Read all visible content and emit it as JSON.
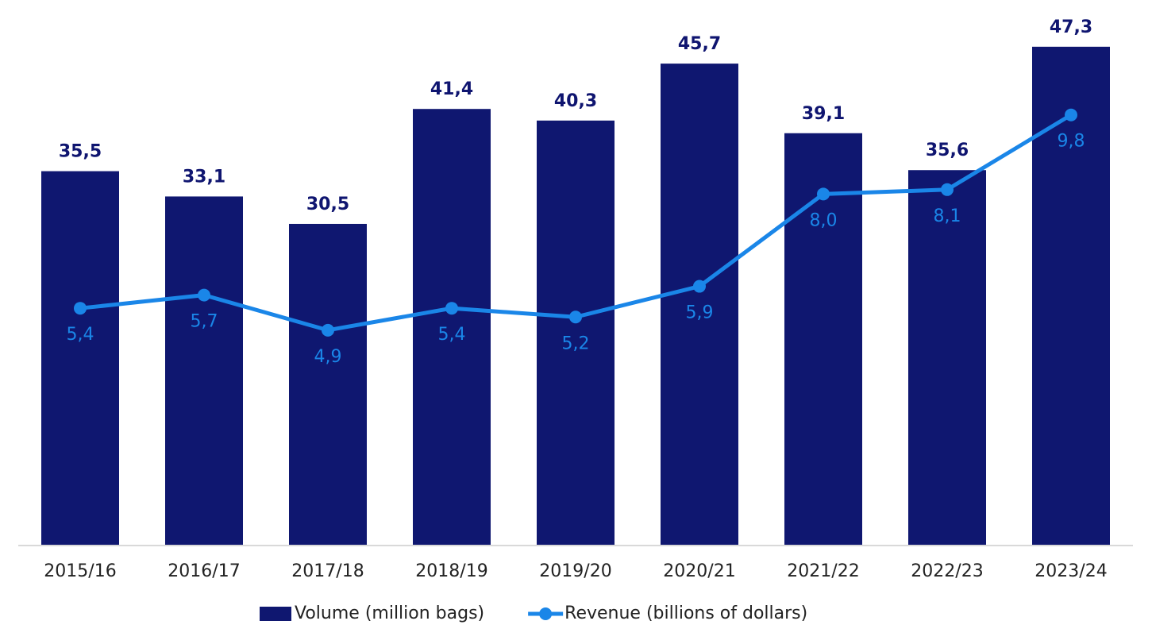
{
  "chart_data": {
    "type": "bar",
    "categories": [
      "2015/16",
      "2016/17",
      "2017/18",
      "2018/19",
      "2019/20",
      "2020/21",
      "2021/22",
      "2022/23",
      "2023/24"
    ],
    "series": [
      {
        "name": "Volume (million bags)",
        "color": "#0f1770",
        "values": [
          35.5,
          33.1,
          30.5,
          41.4,
          40.3,
          45.7,
          39.1,
          35.6,
          47.3
        ],
        "value_labels": [
          "35,5",
          "33,1",
          "30,5",
          "41,4",
          "40,3",
          "45,7",
          "39,1",
          "35,6",
          "47,3"
        ]
      },
      {
        "name": "Revenue (billions of dollars)",
        "color": "#1a86e8",
        "type": "line",
        "axis": "y2",
        "values": [
          5.4,
          5.7,
          4.9,
          5.4,
          5.2,
          5.9,
          8.0,
          8.1,
          9.8
        ],
        "value_labels": [
          "5,4",
          "5,7",
          "4,9",
          "5,4",
          "5,2",
          "5,9",
          "8,0",
          "8,1",
          "9,8"
        ]
      }
    ],
    "ylim": [
      0,
      50
    ],
    "y2lim": [
      0,
      12
    ],
    "legend": "bottom"
  }
}
